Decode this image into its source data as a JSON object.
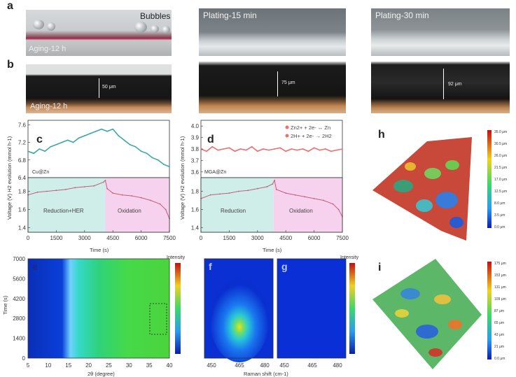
{
  "panels": {
    "a": {
      "label": "a",
      "bubbles_label": "Bubbles",
      "aging_label": "Aging-12 h",
      "plating15_label": "Plating-15 min",
      "plating30_label": "Plating-30 min"
    },
    "b": {
      "label": "b",
      "aging_label": "Aging-12 h",
      "thickness_1": "50 μm",
      "thickness_2": "75 μm",
      "thickness_3": "92 μm"
    },
    "c": {
      "label": "c",
      "sample": "Cu@Zn",
      "ylabel": "Voltage (V) H2 evolution (mmol h-1)",
      "region1": "Reduction+HER",
      "region2": "Oxidation",
      "xlabel": "Time (s)"
    },
    "d": {
      "label": "d",
      "sample": "MGA@Zn",
      "ylabel": "Voltage (V) H2 evolution (mmol h-1)",
      "legend1": "Zn2+ + 2e- ↔ Zn",
      "legend2": "2H+ + 2e- → 2H2",
      "region1": "Reduction",
      "region2": "Oxidation",
      "xlabel": "Time (s)"
    },
    "e": {
      "label": "e",
      "ylabel": "Time (s)",
      "xlabel": "2θ (degree)",
      "colorbar": "Intensity"
    },
    "f": {
      "label": "f"
    },
    "g": {
      "label": "g"
    },
    "fg": {
      "xlabel": "Raman shift (cm-1)",
      "colorbar": "Intensity"
    },
    "h": {
      "label": "h",
      "colorbar_ticks": [
        "35.0 μm",
        "30.5 μm",
        "26.0 μm",
        "21.5 μm",
        "17.0 μm",
        "12.5 μm",
        "8.0 μm",
        "3.5 μm",
        "0.0 μm"
      ]
    },
    "i": {
      "label": "i",
      "colorbar_ticks": [
        "175 μm",
        "153 μm",
        "131 μm",
        "109 μm",
        "87 μm",
        "65 μm",
        "43 μm",
        "21 μm",
        "0.0 μm"
      ]
    }
  },
  "chart_data": [
    {
      "id": "c-top",
      "type": "line",
      "x": [
        0,
        300,
        600,
        900,
        1200,
        1500,
        1800,
        2100,
        2400,
        2700,
        3000,
        3300,
        3600,
        3900,
        4200,
        4500,
        4800,
        5100,
        5400,
        5700,
        6000,
        6300,
        6600,
        6900,
        7200,
        7500
      ],
      "values": [
        7.0,
        6.95,
        7.05,
        7.0,
        7.1,
        7.15,
        7.2,
        7.25,
        7.2,
        7.3,
        7.35,
        7.4,
        7.45,
        7.5,
        7.45,
        7.5,
        7.35,
        7.25,
        7.15,
        7.1,
        7.0,
        6.95,
        6.85,
        6.8,
        6.7,
        6.65
      ],
      "ylim": [
        6.4,
        7.7
      ],
      "yticks": [
        "6.4",
        "6.8",
        "7.2",
        "7.6"
      ],
      "color": "#3ea6a6"
    },
    {
      "id": "c-bottom",
      "type": "line",
      "x": [
        0,
        500,
        1000,
        1500,
        2000,
        2500,
        3000,
        3500,
        4000,
        4100,
        4200,
        4500,
        5000,
        5500,
        6000,
        6500,
        7000,
        7300,
        7500
      ],
      "values": [
        1.76,
        1.79,
        1.8,
        1.81,
        1.82,
        1.84,
        1.85,
        1.86,
        1.9,
        1.92,
        1.83,
        1.78,
        1.76,
        1.75,
        1.73,
        1.7,
        1.66,
        1.6,
        1.5
      ],
      "ylim": [
        1.35,
        1.95
      ],
      "yticks": [
        "1.4",
        "1.6",
        "1.8"
      ],
      "xticks": [
        "0",
        "1500",
        "3000",
        "4500",
        "6000",
        "7500"
      ],
      "shade_split": 4100,
      "color": "#c0607a"
    },
    {
      "id": "d-top",
      "type": "line",
      "x": [
        0,
        300,
        600,
        900,
        1200,
        1500,
        1800,
        2100,
        2400,
        2700,
        3000,
        3300,
        3600,
        3900,
        4200,
        4500,
        4800,
        5100,
        5400,
        5700,
        6000,
        6300,
        6600,
        6900,
        7200,
        7500
      ],
      "values": [
        3.8,
        3.78,
        3.82,
        3.79,
        3.8,
        3.81,
        3.78,
        3.8,
        3.79,
        3.82,
        3.78,
        3.8,
        3.79,
        3.8,
        3.81,
        3.78,
        3.8,
        3.79,
        3.8,
        3.78,
        3.81,
        3.79,
        3.8,
        3.78,
        3.79,
        3.8
      ],
      "ylim": [
        3.55,
        4.05
      ],
      "yticks": [
        "3.6",
        "3.7",
        "3.8",
        "3.9",
        "4.0"
      ],
      "color": "#ee6f70"
    },
    {
      "id": "d-bottom",
      "type": "line",
      "x": [
        0,
        500,
        1000,
        1500,
        2000,
        2500,
        3000,
        3500,
        3800,
        3900,
        4000,
        4500,
        5000,
        5500,
        6000,
        6500,
        7000,
        7300,
        7500
      ],
      "values": [
        1.72,
        1.76,
        1.77,
        1.78,
        1.8,
        1.81,
        1.83,
        1.85,
        1.88,
        1.92,
        1.82,
        1.78,
        1.76,
        1.74,
        1.72,
        1.7,
        1.66,
        1.6,
        1.52
      ],
      "ylim": [
        1.35,
        1.95
      ],
      "yticks": [
        "1.4",
        "1.6",
        "1.8"
      ],
      "xticks": [
        "0",
        "1500",
        "3000",
        "4500",
        "6000",
        "7500"
      ],
      "shade_split": 3850,
      "color": "#c0607a"
    },
    {
      "id": "e",
      "type": "heatmap",
      "x_ticks": [
        "5",
        "10",
        "15",
        "20",
        "25",
        "30",
        "35",
        "40"
      ],
      "y_ticks": [
        "0",
        "1400",
        "2800",
        "4200",
        "5600",
        "7000"
      ]
    },
    {
      "id": "f",
      "type": "heatmap",
      "x_ticks": [
        "450",
        "465",
        "480"
      ]
    },
    {
      "id": "g",
      "type": "heatmap",
      "x_ticks": [
        "450",
        "465",
        "480"
      ]
    }
  ]
}
